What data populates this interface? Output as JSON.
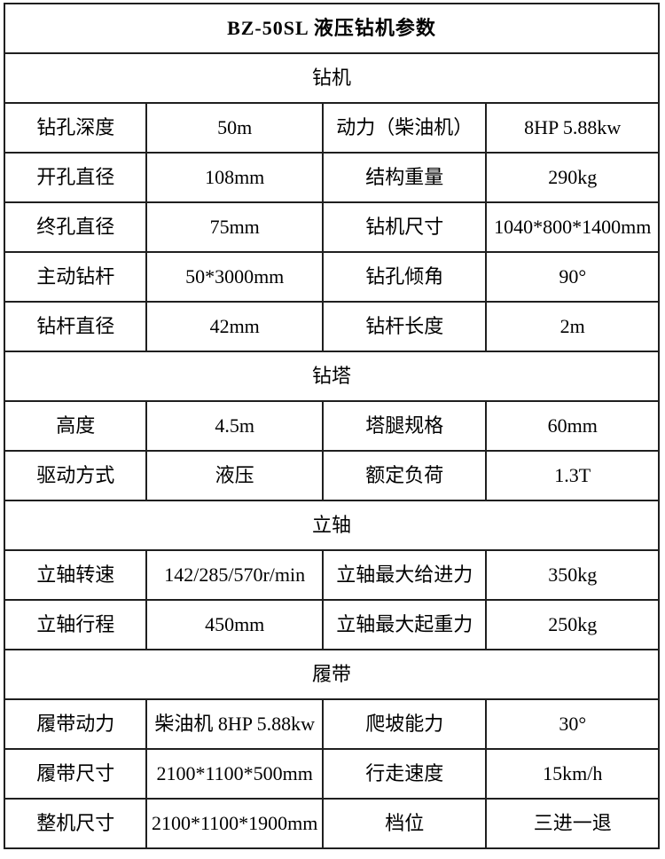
{
  "colors": {
    "border": "#1f1f1f",
    "text": "#000000",
    "background": "#ffffff"
  },
  "title": "BZ-50SL 液压钻机参数",
  "sections": [
    {
      "header": "钻机",
      "rows": [
        {
          "l1": "钻孔深度",
          "v1": "50m",
          "l2": "动力（柴油机）",
          "v2": "8HP 5.88kw"
        },
        {
          "l1": "开孔直径",
          "v1": "108mm",
          "l2": "结构重量",
          "v2": "290kg"
        },
        {
          "l1": "终孔直径",
          "v1": "75mm",
          "l2": "钻机尺寸",
          "v2": "1040*800*1400mm"
        },
        {
          "l1": "主动钻杆",
          "v1": "50*3000mm",
          "l2": "钻孔倾角",
          "v2": "90°"
        },
        {
          "l1": "钻杆直径",
          "v1": "42mm",
          "l2": "钻杆长度",
          "v2": "2m"
        }
      ]
    },
    {
      "header": "钻塔",
      "rows": [
        {
          "l1": "高度",
          "v1": "4.5m",
          "l2": "塔腿规格",
          "v2": "60mm"
        },
        {
          "l1": "驱动方式",
          "v1": "液压",
          "l2": "额定负荷",
          "v2": "1.3T"
        }
      ]
    },
    {
      "header": "立轴",
      "rows": [
        {
          "l1": "立轴转速",
          "v1": "142/285/570r/min",
          "l2": "立轴最大给进力",
          "v2": "350kg"
        },
        {
          "l1": "立轴行程",
          "v1": "450mm",
          "l2": "立轴最大起重力",
          "v2": "250kg"
        }
      ]
    },
    {
      "header": "履带",
      "rows": [
        {
          "l1": "履带动力",
          "v1": "柴油机 8HP 5.88kw",
          "l2": "爬坡能力",
          "v2": "30°"
        },
        {
          "l1": "履带尺寸",
          "v1": "2100*1100*500mm",
          "l2": "行走速度",
          "v2": "15km/h"
        },
        {
          "l1": "整机尺寸",
          "v1": "2100*1100*1900mm",
          "l2": "档位",
          "v2": "三进一退"
        }
      ]
    }
  ]
}
